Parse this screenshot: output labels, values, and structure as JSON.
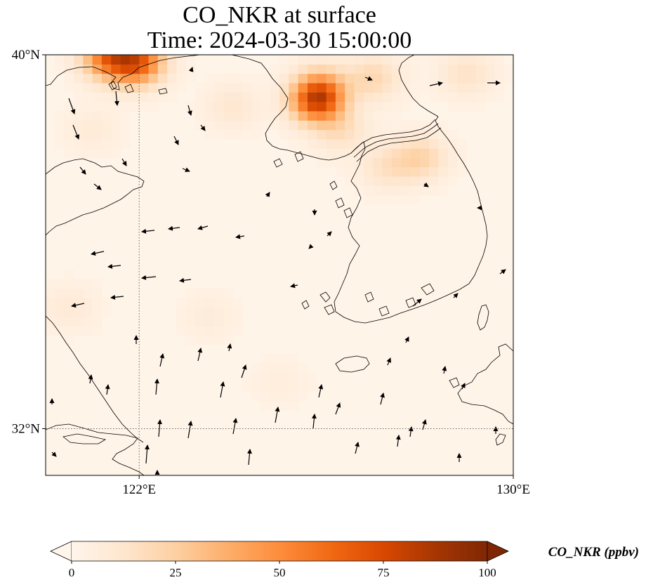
{
  "title": {
    "line1": "CO_NKR at surface",
    "line2": "Time: 2024-03-30 15:00:00"
  },
  "map": {
    "extent": {
      "lon_min": 120,
      "lon_max": 130,
      "lat_min": 31,
      "lat_max": 40
    },
    "lat_ticks": [
      {
        "value": 40,
        "label": "40°N"
      },
      {
        "value": 32,
        "label": "32°N"
      }
    ],
    "lon_ticks": [
      {
        "value": 122,
        "label": "122°E"
      },
      {
        "value": 130,
        "label": "130°E"
      }
    ],
    "gridlines": {
      "lon": 122,
      "lat": 32,
      "style": "dotted"
    },
    "field": {
      "variable": "CO_NKR",
      "hotspots": [
        {
          "lon": 121.35,
          "lat": 39.95,
          "value": 55
        },
        {
          "lon": 122.0,
          "lat": 39.9,
          "value": 45
        },
        {
          "lon": 121.9,
          "lat": 39.7,
          "value": 20
        },
        {
          "lon": 125.8,
          "lat": 39.0,
          "value": 62
        },
        {
          "lon": 125.9,
          "lat": 39.3,
          "value": 30
        },
        {
          "lon": 127.0,
          "lat": 39.5,
          "value": 18
        },
        {
          "lon": 126.3,
          "lat": 38.4,
          "value": 14
        },
        {
          "lon": 128.0,
          "lat": 37.8,
          "value": 20
        },
        {
          "lon": 127.3,
          "lat": 37.6,
          "value": 12
        },
        {
          "lon": 129.0,
          "lat": 39.6,
          "value": 12
        },
        {
          "lon": 124.0,
          "lat": 38.9,
          "value": 9
        },
        {
          "lon": 121.0,
          "lat": 38.4,
          "value": 6
        },
        {
          "lon": 120.5,
          "lat": 34.6,
          "value": 7
        },
        {
          "lon": 123.5,
          "lat": 34.4,
          "value": 5
        },
        {
          "lon": 125.0,
          "lat": 33.0,
          "value": 4
        }
      ],
      "background": 2.5
    }
  },
  "colorbar": {
    "label": "CO_NKR (ppbv)",
    "min": 0,
    "max": 100,
    "extend": "both",
    "ticks": [
      {
        "value": 0,
        "label": "0"
      },
      {
        "value": 25,
        "label": "25"
      },
      {
        "value": 50,
        "label": "50"
      },
      {
        "value": 75,
        "label": "75"
      },
      {
        "value": 100,
        "label": "100"
      }
    ],
    "colors": [
      "#fff5eb",
      "#fee6ce",
      "#fdd0a2",
      "#fdae6b",
      "#fd8d3c",
      "#f16913",
      "#d94801",
      "#a63603",
      "#7f2704"
    ]
  }
}
